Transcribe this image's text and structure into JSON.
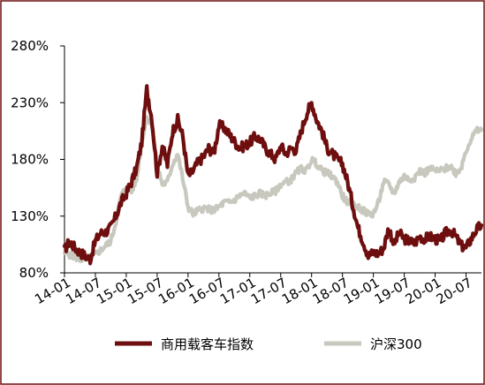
{
  "chart_data": {
    "type": "line",
    "x_ticks": [
      "14-01",
      "14-07",
      "15-01",
      "15-07",
      "16-01",
      "16-07",
      "17-01",
      "17-07",
      "18-01",
      "18-07",
      "19-01",
      "19-07",
      "20-01",
      "20-07"
    ],
    "y_ticks": [
      "80%",
      "130%",
      "180%",
      "230%",
      "280%"
    ],
    "ylim": [
      80,
      280
    ],
    "xlim": [
      "2014-01",
      "2020-10"
    ],
    "y_unit": "%",
    "grid": false,
    "legend_position": "bottom",
    "colors": {
      "series1": "#6e0e0e",
      "series2": "#c8c8be",
      "frame": "#6e0e0e"
    },
    "series": [
      {
        "name": "商用载客车指数",
        "x": [
          "2014-01",
          "2014-02",
          "2014-03",
          "2014-04",
          "2014-05",
          "2014-06",
          "2014-07",
          "2014-08",
          "2014-09",
          "2014-10",
          "2014-11",
          "2014-12",
          "2015-01",
          "2015-02",
          "2015-03",
          "2015-04",
          "2015-05",
          "2015-06",
          "2015-07",
          "2015-08",
          "2015-09",
          "2015-10",
          "2015-11",
          "2015-12",
          "2016-01",
          "2016-02",
          "2016-03",
          "2016-04",
          "2016-05",
          "2016-06",
          "2016-07",
          "2016-08",
          "2016-09",
          "2016-10",
          "2016-11",
          "2016-12",
          "2017-01",
          "2017-02",
          "2017-03",
          "2017-04",
          "2017-05",
          "2017-06",
          "2017-07",
          "2017-08",
          "2017-09",
          "2017-10",
          "2017-11",
          "2017-12",
          "2018-01",
          "2018-02",
          "2018-03",
          "2018-04",
          "2018-05",
          "2018-06",
          "2018-07",
          "2018-08",
          "2018-09",
          "2018-10",
          "2018-11",
          "2018-12",
          "2019-01",
          "2019-02",
          "2019-03",
          "2019-04",
          "2019-05",
          "2019-06",
          "2019-07",
          "2019-08",
          "2019-09",
          "2019-10",
          "2019-11",
          "2019-12",
          "2020-01",
          "2020-02",
          "2020-03",
          "2020-04",
          "2020-05",
          "2020-06",
          "2020-07",
          "2020-08",
          "2020-09",
          "2020-10"
        ],
        "values": [
          100,
          108,
          102,
          98,
          95,
          92,
          108,
          115,
          116,
          120,
          130,
          142,
          150,
          160,
          172,
          195,
          242,
          215,
          168,
          192,
          175,
          205,
          215,
          200,
          165,
          170,
          178,
          182,
          190,
          185,
          210,
          208,
          202,
          196,
          190,
          192,
          195,
          200,
          198,
          190,
          185,
          180,
          192,
          185,
          190,
          188,
          205,
          220,
          230,
          215,
          205,
          190,
          185,
          180,
          176,
          160,
          140,
          120,
          108,
          95,
          98,
          97,
          102,
          120,
          105,
          115,
          110,
          108,
          106,
          112,
          110,
          112,
          110,
          108,
          115,
          118,
          112,
          104,
          102,
          110,
          118,
          122
        ]
      },
      {
        "name": "沪深300",
        "x": [
          "2014-01",
          "2014-02",
          "2014-03",
          "2014-04",
          "2014-05",
          "2014-06",
          "2014-07",
          "2014-08",
          "2014-09",
          "2014-10",
          "2014-11",
          "2014-12",
          "2015-01",
          "2015-02",
          "2015-03",
          "2015-04",
          "2015-05",
          "2015-06",
          "2015-07",
          "2015-08",
          "2015-09",
          "2015-10",
          "2015-11",
          "2015-12",
          "2016-01",
          "2016-02",
          "2016-03",
          "2016-04",
          "2016-05",
          "2016-06",
          "2016-07",
          "2016-08",
          "2016-09",
          "2016-10",
          "2016-11",
          "2016-12",
          "2017-01",
          "2017-02",
          "2017-03",
          "2017-04",
          "2017-05",
          "2017-06",
          "2017-07",
          "2017-08",
          "2017-09",
          "2017-10",
          "2017-11",
          "2017-12",
          "2018-01",
          "2018-02",
          "2018-03",
          "2018-04",
          "2018-05",
          "2018-06",
          "2018-07",
          "2018-08",
          "2018-09",
          "2018-10",
          "2018-11",
          "2018-12",
          "2019-01",
          "2019-02",
          "2019-03",
          "2019-04",
          "2019-05",
          "2019-06",
          "2019-07",
          "2019-08",
          "2019-09",
          "2019-10",
          "2019-11",
          "2019-12",
          "2020-01",
          "2020-02",
          "2020-03",
          "2020-04",
          "2020-05",
          "2020-06",
          "2020-07",
          "2020-08",
          "2020-09",
          "2020-10"
        ],
        "values": [
          98,
          96,
          94,
          92,
          92,
          94,
          96,
          100,
          104,
          108,
          125,
          148,
          155,
          152,
          162,
          195,
          218,
          210,
          175,
          158,
          160,
          176,
          185,
          162,
          138,
          132,
          135,
          137,
          136,
          135,
          138,
          142,
          142,
          144,
          148,
          150,
          146,
          148,
          150,
          148,
          150,
          152,
          158,
          160,
          162,
          168,
          172,
          170,
          180,
          176,
          170,
          168,
          165,
          160,
          148,
          142,
          140,
          138,
          135,
          132,
          132,
          142,
          160,
          158,
          150,
          160,
          165,
          162,
          164,
          170,
          168,
          172,
          170,
          170,
          172,
          174,
          168,
          172,
          188,
          198,
          205,
          206
        ]
      }
    ]
  }
}
